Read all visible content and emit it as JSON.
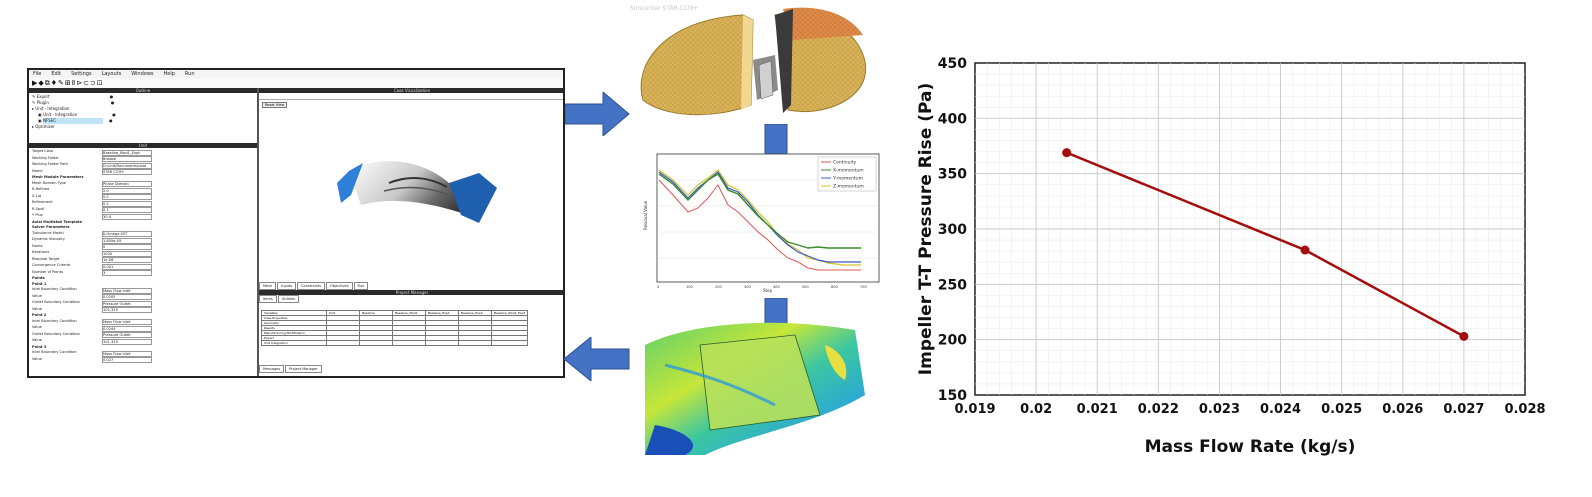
{
  "header": {
    "watermark": "Simcenter STAR-CCM+"
  },
  "software": {
    "menu": [
      "File",
      "Edit",
      "Settings",
      "Layouts",
      "Windows",
      "Help",
      "Run"
    ],
    "toolbar_glyphs": "▶◆⧉♦✎⊞Ⅱ⊳⊂⊃⊡",
    "outline_title": "Outline",
    "tree_items": [
      "Export",
      "Plugin",
      "Unit - Integration",
      "Unit - Integration",
      "NFSEC",
      "Optimizer"
    ],
    "props_title": "Unit",
    "properties": [
      {
        "key": "Target Case",
        "value": "Baseline_Mod1_Expt"
      },
      {
        "key": "Working Folder",
        "value": "Browse"
      },
      {
        "key": "Working Folder Path",
        "value": "D:/unit/Documents/case"
      },
      {
        "key": "Name",
        "value": "STAR CCM+"
      },
      {
        "key": "Mesh Module Parameters",
        "value": ""
      },
      {
        "key": "Mesh Domain Type",
        "value": "Phase Domain"
      },
      {
        "key": "R-Refined",
        "value": "2.0"
      },
      {
        "key": "Z-Lid",
        "value": "0.0"
      },
      {
        "key": "Refinement",
        "value": "0.2"
      },
      {
        "key": "R-Spoil",
        "value": "0.1"
      },
      {
        "key": "Y Plus",
        "value": "30.0"
      },
      {
        "key": "Axial Multistall Template",
        "value": ""
      },
      {
        "key": "Solver Parameters",
        "value": ""
      },
      {
        "key": "Turbulence Model",
        "value": "K-Omega SST"
      },
      {
        "key": "Dynamic Viscosity",
        "value": "1.855e-05"
      },
      {
        "key": "Name",
        "value": "0"
      },
      {
        "key": "Iterations",
        "value": "1000"
      },
      {
        "key": "Residual Target",
        "value": "1e-06"
      },
      {
        "key": "Convergence Criteria",
        "value": "0.001"
      },
      {
        "key": "Number of Points",
        "value": "3"
      },
      {
        "key": "Points",
        "value": ""
      },
      {
        "key": "Point 1",
        "value": ""
      },
      {
        "key": "Inlet Boundary Condition",
        "value": "Mass Flow Inlet"
      },
      {
        "key": "Value",
        "value": "0.0205"
      },
      {
        "key": "Outlet Boundary Condition",
        "value": "Pressure Outlet"
      },
      {
        "key": "Value",
        "value": "101,325"
      },
      {
        "key": "Point 2",
        "value": ""
      },
      {
        "key": "Inlet Boundary Condition",
        "value": "Mass Flow Inlet"
      },
      {
        "key": "Value",
        "value": "0.0244"
      },
      {
        "key": "Outlet Boundary Condition",
        "value": "Pressure Outlet"
      },
      {
        "key": "Value",
        "value": "101,325"
      },
      {
        "key": "Point 3",
        "value": ""
      },
      {
        "key": "Inlet Boundary Condition",
        "value": "Mass Flow Inlet"
      },
      {
        "key": "Value",
        "value": "0.027"
      }
    ],
    "viz_title": "Case Visualization",
    "reset_view": "Reset View",
    "viz_tabs": [
      "Mesh",
      "Inputs",
      "Constraints",
      "Objectives",
      "Run"
    ],
    "pm_title": "Project Manager",
    "pm_tabs": [
      "Items",
      "Utilities"
    ],
    "pm_columns": [
      "Variables",
      "Unit",
      "Baseline",
      "Baseline_Mod1",
      "Baseline_Exp1",
      "Baseline_Exp2",
      "Baseline_Mod1_Exp3"
    ],
    "pm_rows": [
      "Case Properties",
      "Geometry",
      "Results",
      "Manufacturing Modification",
      "Export",
      "Unit Integration"
    ],
    "bottom_tabs": [
      "Messages",
      "Project Manager"
    ]
  },
  "residual_plot": {
    "legend": [
      "Continuity",
      "X-momentum",
      "Y-momentum",
      "Z-momentum"
    ],
    "xlabel": "Step",
    "ylabel": "Residual Value",
    "xticks": [
      "0",
      "100",
      "200",
      "300",
      "400",
      "500",
      "600",
      "700"
    ],
    "colors": [
      "#e05555",
      "#3a8a2a",
      "#3a58c8",
      "#d6c32a"
    ]
  },
  "colors": {
    "arrow": "#4472c4",
    "line": "#a50d0d",
    "impeller_blue": "#1f5fb0",
    "mesh": "#d8b258"
  },
  "icons": [
    "arrow-right-icon",
    "arrow-down-icon",
    "arrow-down-icon",
    "arrow-left-icon"
  ],
  "chart_data": {
    "type": "line",
    "title": "",
    "xlabel": "Mass Flow Rate (kg/s)",
    "ylabel": "Impeller T-T Pressure Rise (Pa)",
    "x": [
      0.0205,
      0.0244,
      0.027
    ],
    "series": [
      {
        "values": [
          369,
          281,
          203
        ]
      }
    ],
    "xlim": [
      0.019,
      0.028
    ],
    "ylim": [
      150,
      450
    ],
    "xticks": [
      "0.019",
      "0.02",
      "0.021",
      "0.022",
      "0.023",
      "0.024",
      "0.025",
      "0.026",
      "0.027",
      "0.028"
    ],
    "yticks": [
      "150",
      "200",
      "250",
      "300",
      "350",
      "400",
      "450"
    ],
    "grid": true,
    "color": "#a50d0d"
  }
}
